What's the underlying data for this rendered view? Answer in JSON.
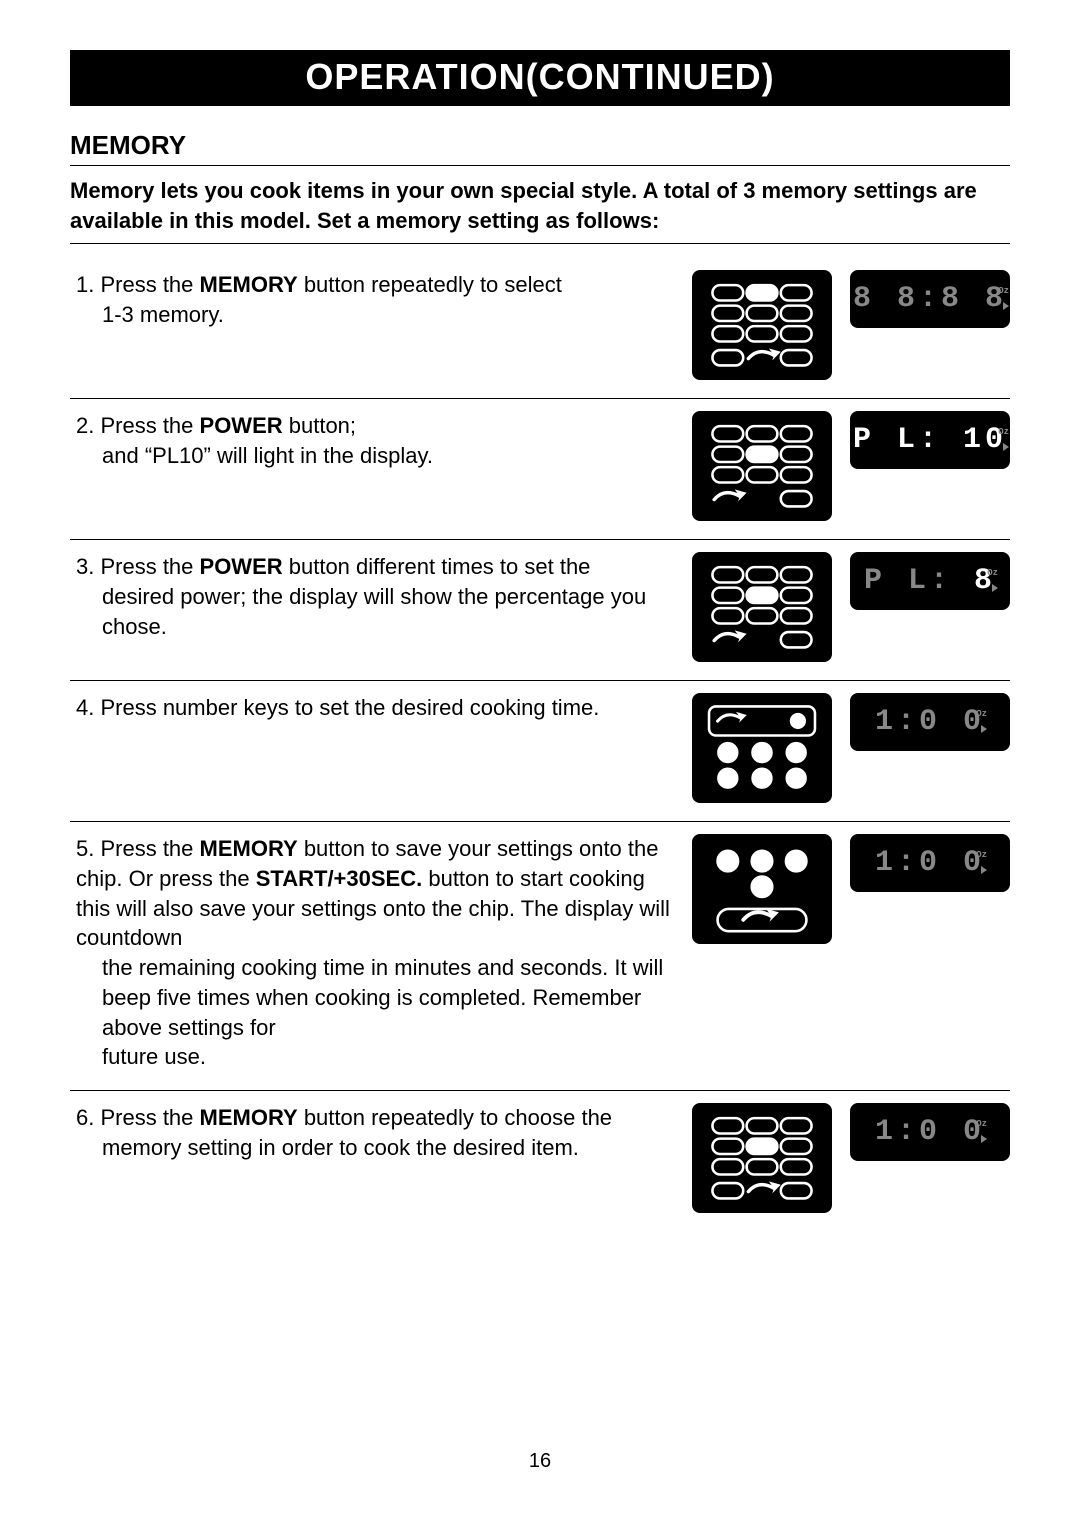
{
  "banner": "OPERATION(CONTINUED)",
  "section_title": "MEMORY",
  "intro": "Memory lets you cook items in your own special style. A total of 3 memory settings are available in this model. Set a memory setting as follows:",
  "page_number": "16",
  "led_color": "#888888",
  "display_oz_label": "Oz",
  "steps": [
    {
      "num": "1.",
      "line1_pre": "Press the ",
      "line1_bold": "MEMORY",
      "line1_post": " button repeatedly to select",
      "line2": "1-3 memory.",
      "keypad": "kp_memory_top",
      "display": "8 8:8 8",
      "bright": ""
    },
    {
      "num": "2.",
      "line1_pre": "Press the ",
      "line1_bold": "POWER",
      "line1_post": " button;",
      "line2": "and “PL10” will light in the display.",
      "keypad": "kp_power",
      "display": "P L: 10",
      "bright_display": "P",
      "bright": "all"
    },
    {
      "num": "3.",
      "line1_pre": "Press the ",
      "line1_bold": "POWER",
      "line1_post": " button different times to set the",
      "line2": "desired power; the display will show the percentage you chose.",
      "keypad": "kp_power",
      "display": "P L:  8",
      "bright": "last"
    },
    {
      "num": "4.",
      "line1_pre": "Press number keys to set the desired cooking time.",
      "line1_bold": "",
      "line1_post": "",
      "line2": "",
      "keypad": "kp_numbers",
      "display": "  1:0 0",
      "bright": ""
    },
    {
      "num": "5.",
      "html": true,
      "keypad": "kp_start",
      "display": "  1:0 0",
      "bright": ""
    },
    {
      "num": "6.",
      "line1_pre": "Press the ",
      "line1_bold": "MEMORY",
      "line1_post": " button repeatedly to choose the",
      "line2": "memory setting in order to cook the desired item.",
      "keypad": "kp_memory_mid",
      "display": "  1:0 0",
      "bright": ""
    }
  ],
  "step5_parts": {
    "a": "Press the ",
    "b": "MEMORY",
    "c": " button to save your settings onto the chip. Or press the ",
    "d": "START/+30SEC.",
    "e": " button to start cooking this will also save your settings onto the chip. The display will countdown",
    "f": "the remaining cooking time in minutes and seconds. It will beep five times when cooking is completed. Remember above settings for",
    "g": "future use."
  },
  "keypad_styles": {
    "pill_stroke": "#ffffff",
    "pill_fill_empty": "none",
    "pill_fill_solid": "#ffffff",
    "circle_fill": "#ffffff",
    "arrow_color": "#ffffff"
  }
}
